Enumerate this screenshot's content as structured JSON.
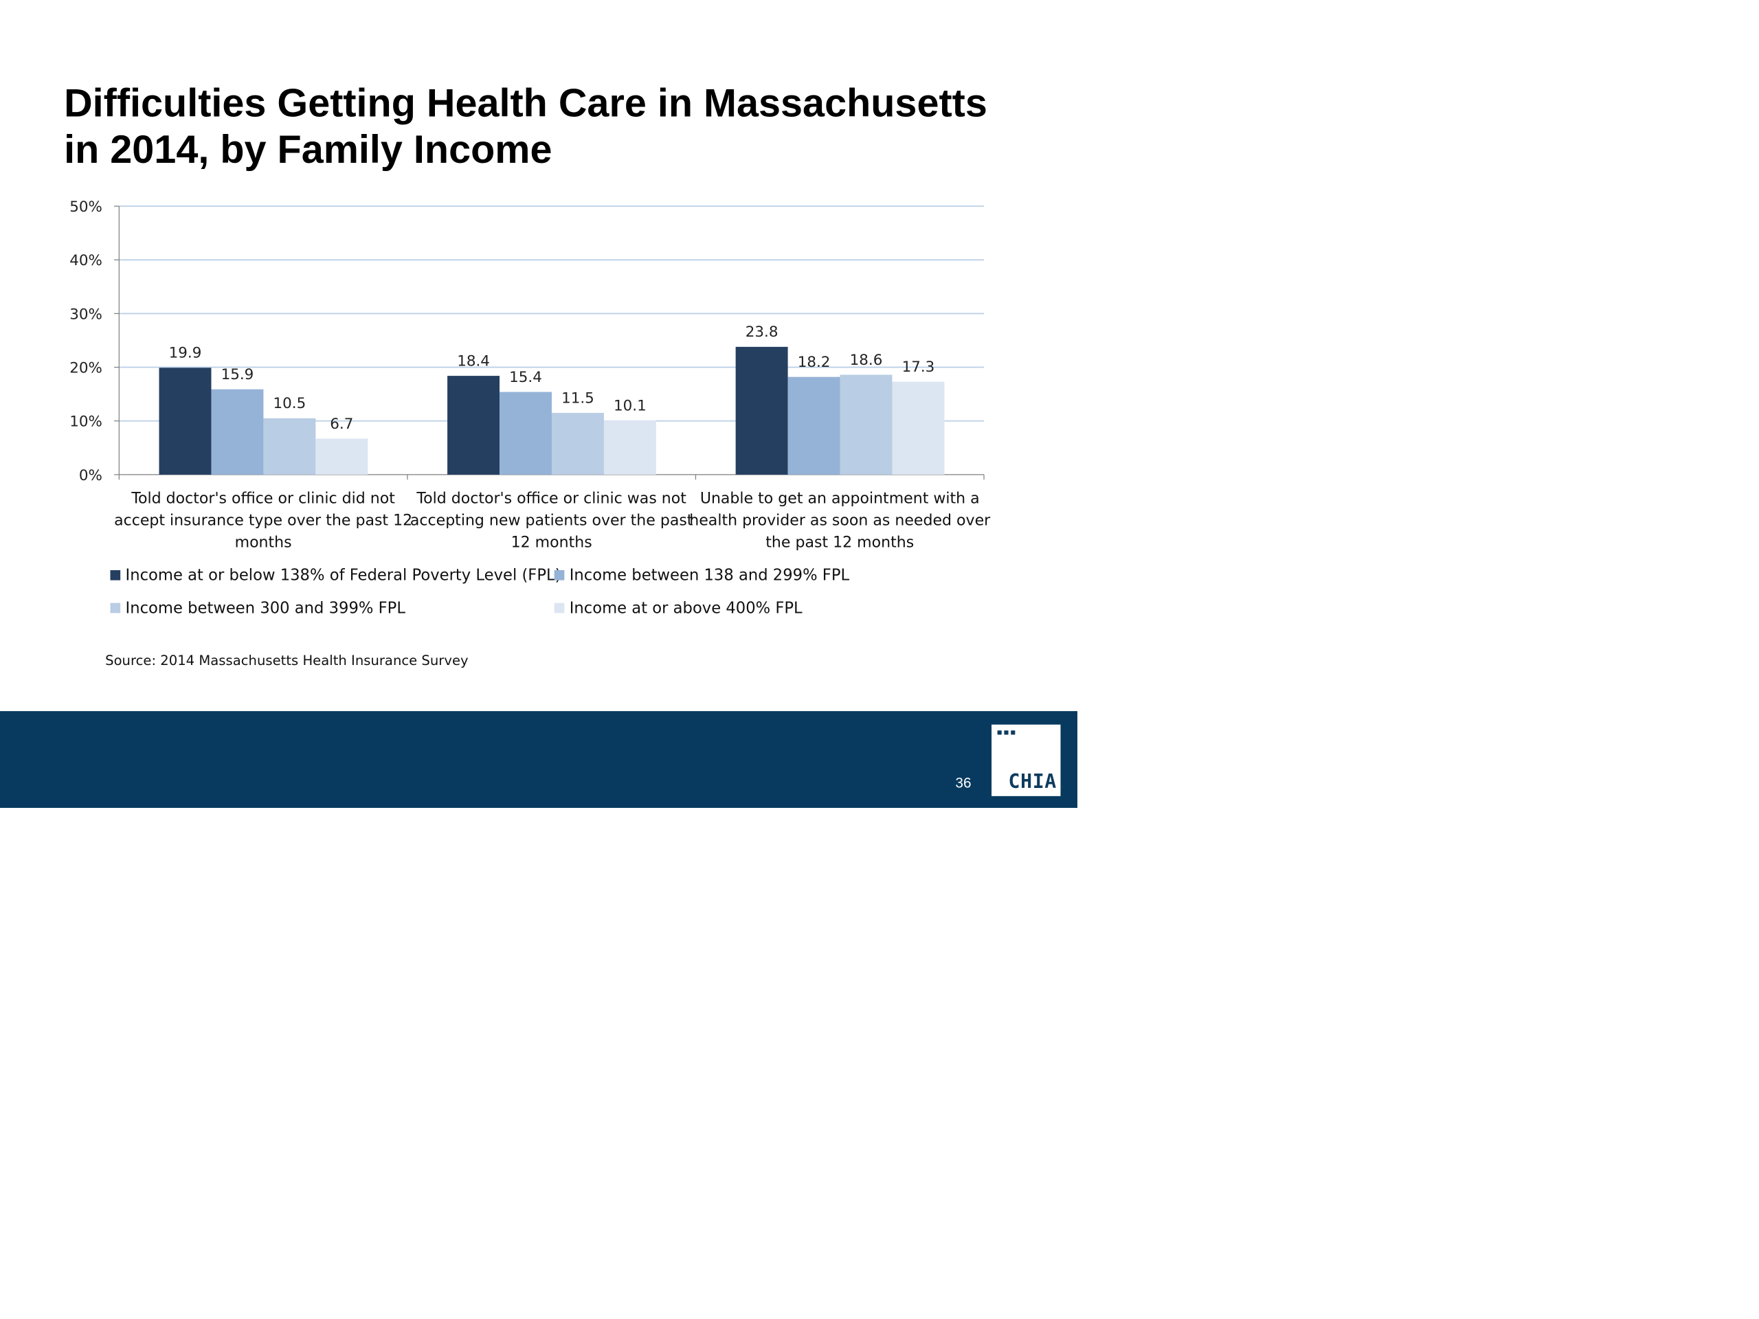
{
  "title_lines": [
    "Difficulties Getting Health Care in Massachusetts",
    "in 2014, by Family Income"
  ],
  "colors": {
    "series": [
      "#243f60",
      "#95b3d7",
      "#b9cde4",
      "#dce6f2"
    ],
    "grid": "#bcd0e8",
    "axis": "#7f7f7f",
    "footer": "#073a5e"
  },
  "chart_data": {
    "type": "bar",
    "categories": [
      [
        "Told doctor's office or clinic did not",
        "accept insurance type over the past 12",
        "months"
      ],
      [
        "Told doctor's office or clinic was not",
        "accepting new patients over the past",
        "12 months"
      ],
      [
        "Unable to get an appointment with a",
        "health provider as soon as needed over",
        "the past 12 months"
      ]
    ],
    "series": [
      {
        "name": "Income at or below 138% of Federal Poverty Level (FPL)",
        "values": [
          19.9,
          18.4,
          23.8
        ]
      },
      {
        "name": "Income between 138 and 299% FPL",
        "values": [
          15.9,
          15.4,
          18.2
        ]
      },
      {
        "name": "Income between 300 and 399% FPL",
        "values": [
          10.5,
          11.5,
          18.6
        ]
      },
      {
        "name": "Income at or above 400% FPL",
        "values": [
          6.7,
          10.1,
          17.3
        ]
      }
    ],
    "data_labels": [
      [
        "19.9",
        "18.4",
        "23.8"
      ],
      [
        "15.9",
        "15.4",
        "18.2"
      ],
      [
        "10.5",
        "11.5",
        "18.6"
      ],
      [
        "6.7",
        "10.1",
        "17.3"
      ]
    ],
    "ylim": [
      0,
      50
    ],
    "yticks": [
      0,
      10,
      20,
      30,
      40,
      50
    ],
    "ytick_labels": [
      "0%",
      "10%",
      "20%",
      "30%",
      "40%",
      "50%"
    ],
    "grid": true,
    "legend_position": "bottom"
  },
  "source": "Source:  2014 Massachusetts Health Insurance Survey",
  "page_number": "36",
  "logo_text": "CHIA."
}
